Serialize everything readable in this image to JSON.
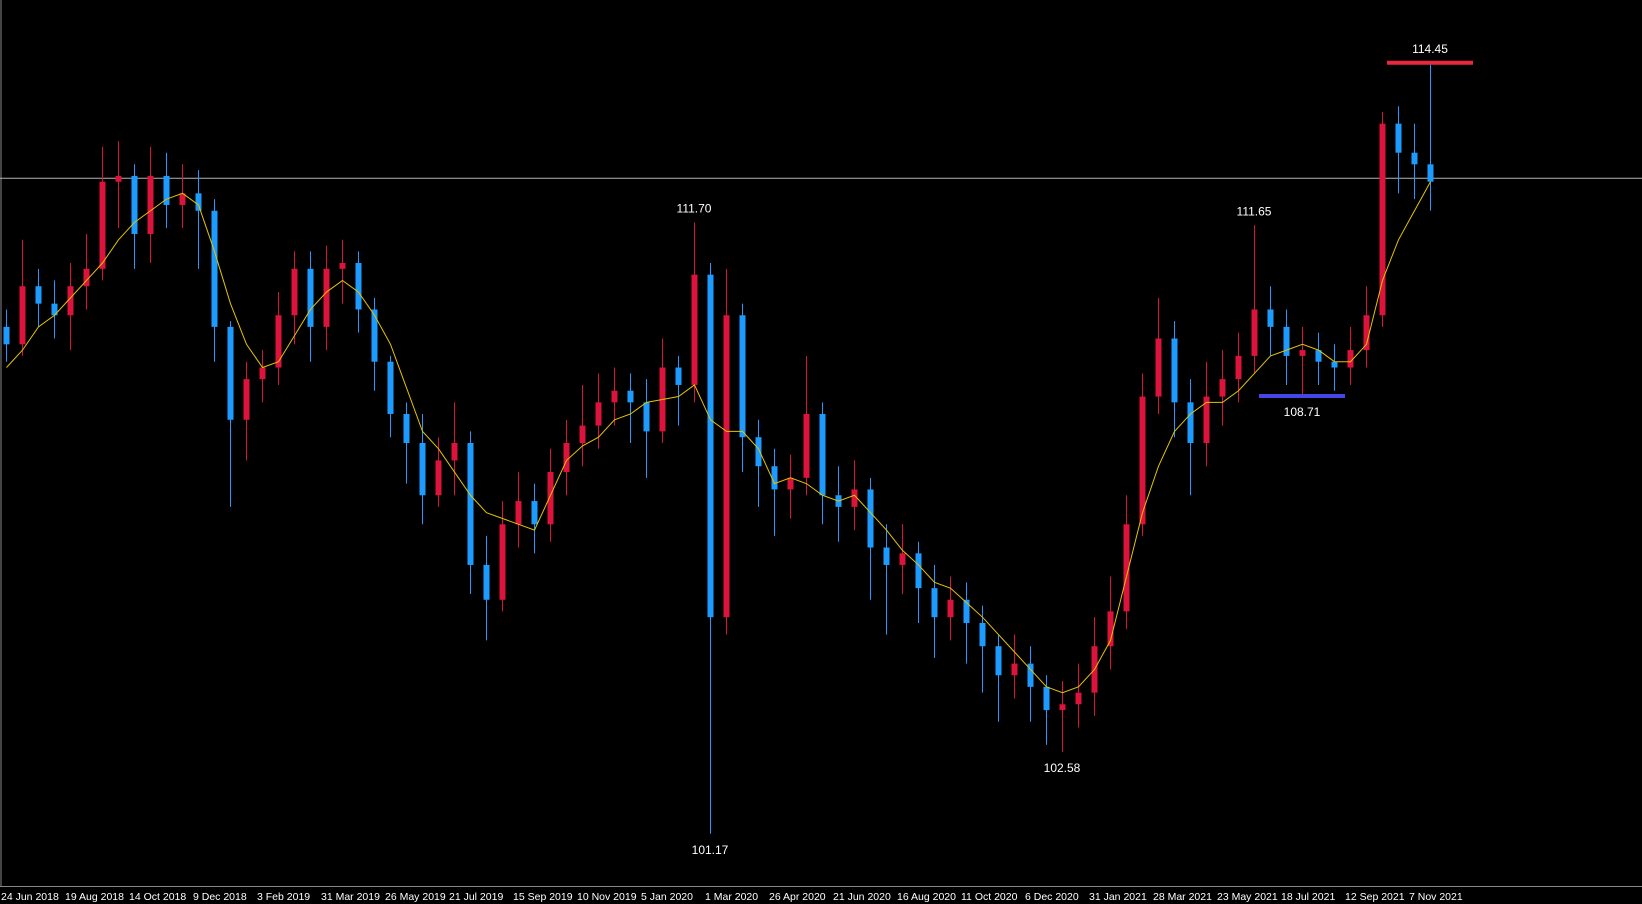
{
  "chart_data": {
    "type": "candlestick",
    "categories": [
      "24 Jun 2018",
      null,
      null,
      null,
      "19 Aug 2018",
      null,
      null,
      null,
      "14 Oct 2018",
      null,
      null,
      null,
      "9 Dec 2018",
      null,
      null,
      null,
      "3 Feb 2019",
      null,
      null,
      null,
      "31 Mar 2019",
      null,
      null,
      null,
      "26 May 2019",
      null,
      null,
      null,
      "21 Jul 2019",
      null,
      null,
      null,
      "15 Sep 2019",
      null,
      null,
      null,
      "10 Nov 2019",
      null,
      null,
      null,
      "5 Jan 2020",
      null,
      null,
      null,
      "1 Mar 2020",
      null,
      null,
      null,
      "26 Apr 2020",
      null,
      null,
      null,
      "21 Jun 2020",
      null,
      null,
      null,
      "16 Aug 2020",
      null,
      null,
      null,
      "11 Oct 2020",
      null,
      null,
      null,
      "6 Dec 2020",
      null,
      null,
      null,
      "31 Jan 2021",
      null,
      null,
      null,
      "28 Mar 2021",
      null,
      null,
      null,
      "23 May 2021",
      null,
      null,
      null,
      "18 Jul 2021",
      null,
      null,
      null,
      "12 Sep 2021",
      null,
      null,
      null,
      "7 Nov 2021",
      null
    ],
    "open": [
      109.9,
      109.6,
      110.6,
      110.3,
      110.1,
      110.6,
      110.9,
      112.4,
      112.5,
      111.5,
      112.5,
      112.0,
      112.2,
      111.9,
      109.9,
      108.3,
      109.0,
      109.2,
      110.1,
      110.9,
      109.9,
      110.9,
      111.0,
      110.2,
      109.3,
      108.4,
      107.9,
      107.0,
      107.6,
      107.9,
      105.8,
      105.2,
      106.5,
      106.9,
      106.5,
      107.4,
      107.9,
      108.2,
      108.6,
      108.8,
      108.6,
      108.1,
      109.2,
      108.9,
      110.8,
      104.9,
      110.1,
      108.0,
      107.5,
      107.1,
      107.3,
      108.4,
      107.0,
      106.8,
      107.1,
      106.1,
      105.8,
      106.0,
      105.4,
      104.9,
      105.2,
      104.8,
      104.4,
      103.9,
      104.1,
      103.7,
      103.3,
      103.4,
      103.6,
      104.4,
      105.0,
      106.5,
      108.7,
      109.7,
      108.6,
      107.9,
      108.7,
      109.0,
      109.4,
      110.2,
      109.9,
      109.4,
      109.5,
      109.3,
      109.2,
      109.5,
      110.1,
      113.4,
      112.9,
      112.7
    ],
    "high": [
      110.2,
      111.4,
      110.9,
      110.7,
      111.0,
      111.5,
      113.0,
      113.1,
      112.7,
      113.0,
      112.9,
      112.7,
      112.6,
      112.1,
      110.0,
      109.3,
      109.5,
      110.5,
      111.2,
      111.2,
      111.3,
      111.4,
      111.2,
      110.4,
      109.4,
      108.6,
      108.4,
      108.0,
      108.6,
      108.1,
      106.3,
      106.9,
      107.4,
      107.2,
      107.8,
      108.3,
      108.9,
      109.1,
      109.2,
      109.1,
      109.0,
      109.7,
      109.4,
      111.7,
      111.0,
      110.9,
      110.3,
      108.3,
      107.8,
      107.7,
      109.4,
      108.6,
      107.5,
      107.6,
      107.3,
      106.5,
      106.5,
      106.2,
      105.8,
      105.6,
      105.5,
      105.1,
      104.6,
      104.6,
      104.4,
      103.9,
      103.8,
      104.1,
      104.9,
      105.6,
      107.0,
      109.1,
      110.4,
      110.0,
      109.0,
      109.3,
      109.5,
      109.8,
      111.65,
      110.6,
      110.2,
      109.9,
      109.8,
      109.6,
      109.9,
      110.6,
      113.6,
      113.7,
      113.4,
      114.45
    ],
    "low": [
      109.3,
      109.4,
      109.9,
      109.7,
      109.5,
      110.2,
      110.7,
      111.6,
      110.9,
      111.0,
      111.6,
      111.6,
      110.9,
      109.3,
      106.8,
      107.6,
      108.6,
      108.9,
      109.6,
      109.3,
      109.5,
      110.3,
      109.8,
      108.8,
      108.0,
      107.2,
      106.5,
      106.8,
      107.0,
      105.3,
      104.5,
      105.0,
      106.1,
      106.0,
      106.2,
      107.0,
      107.5,
      107.8,
      108.2,
      107.9,
      107.3,
      107.9,
      108.2,
      108.6,
      101.17,
      104.6,
      107.4,
      106.8,
      106.3,
      106.6,
      107.0,
      106.5,
      106.2,
      106.4,
      105.2,
      104.6,
      105.3,
      104.8,
      104.2,
      104.5,
      104.1,
      103.6,
      103.1,
      103.5,
      103.1,
      102.7,
      102.58,
      103.0,
      103.2,
      104.0,
      104.7,
      106.3,
      108.4,
      108.0,
      107.0,
      107.5,
      108.2,
      108.6,
      109.1,
      109.4,
      108.9,
      108.71,
      108.9,
      108.8,
      108.9,
      109.2,
      109.9,
      112.2,
      112.1,
      111.9
    ],
    "close": [
      109.6,
      110.6,
      110.3,
      110.1,
      110.6,
      110.9,
      112.4,
      112.5,
      111.5,
      112.5,
      112.0,
      112.2,
      111.9,
      109.9,
      108.3,
      109.0,
      109.2,
      110.1,
      110.9,
      109.9,
      110.9,
      111.0,
      110.2,
      109.3,
      108.4,
      107.9,
      107.0,
      107.6,
      107.9,
      105.8,
      105.2,
      106.5,
      106.9,
      106.5,
      107.4,
      107.9,
      108.2,
      108.6,
      108.8,
      108.6,
      108.1,
      109.2,
      108.9,
      110.8,
      104.9,
      110.1,
      108.0,
      107.5,
      107.1,
      107.3,
      108.4,
      107.0,
      106.8,
      107.1,
      106.1,
      105.8,
      106.0,
      105.4,
      104.9,
      105.2,
      104.8,
      104.4,
      103.9,
      104.1,
      103.7,
      103.3,
      103.4,
      103.6,
      104.4,
      105.0,
      106.5,
      108.7,
      109.7,
      108.6,
      107.9,
      108.7,
      109.0,
      109.4,
      110.2,
      109.9,
      109.4,
      109.5,
      109.3,
      109.2,
      109.5,
      110.1,
      113.4,
      112.9,
      112.7,
      112.4
    ],
    "ma_values": [
      109.2,
      109.5,
      109.9,
      110.1,
      110.4,
      110.7,
      111.0,
      111.4,
      111.7,
      111.9,
      112.1,
      112.2,
      112.0,
      111.2,
      110.3,
      109.6,
      109.2,
      109.3,
      109.75,
      110.2,
      110.5,
      110.7,
      110.5,
      110.1,
      109.6,
      108.85,
      108.1,
      107.8,
      107.4,
      107.0,
      106.7,
      106.6,
      106.5,
      106.4,
      107.0,
      107.6,
      107.85,
      108.0,
      108.3,
      108.4,
      108.6,
      108.65,
      108.7,
      108.9,
      108.3,
      108.1,
      108.1,
      107.8,
      107.2,
      107.3,
      107.2,
      107.0,
      106.9,
      107.0,
      106.7,
      106.4,
      106.05,
      105.8,
      105.5,
      105.4,
      105.15,
      104.9,
      104.6,
      104.3,
      104.0,
      103.7,
      103.6,
      103.7,
      104.0,
      104.5,
      105.6,
      106.7,
      107.5,
      108.1,
      108.4,
      108.6,
      108.6,
      108.8,
      109.1,
      109.4,
      109.5,
      109.6,
      109.5,
      109.3,
      109.3,
      109.6,
      110.7,
      111.4,
      111.9,
      112.4
    ],
    "up_color": "#dc143c",
    "down_color": "#1e9bff",
    "ma_color": "#e6c300",
    "price_line": 112.46,
    "price_line_color": "#b4b4b4",
    "ylim": [
      100.27,
      115.53
    ],
    "high_labels": [
      {
        "value": 114.45,
        "label": "114.45"
      },
      {
        "value": 111.7,
        "label": "111.70"
      },
      {
        "value": 111.65,
        "label": "111.65"
      }
    ],
    "low_labels": [
      {
        "value": 108.71,
        "label": "108.71"
      },
      {
        "value": 102.58,
        "label": "102.58"
      },
      {
        "value": 101.17,
        "label": "101.17"
      }
    ],
    "level_lines": [
      {
        "value": 114.45,
        "color": "#e8283c"
      },
      {
        "value": 108.71,
        "color": "#4646e6"
      }
    ]
  }
}
